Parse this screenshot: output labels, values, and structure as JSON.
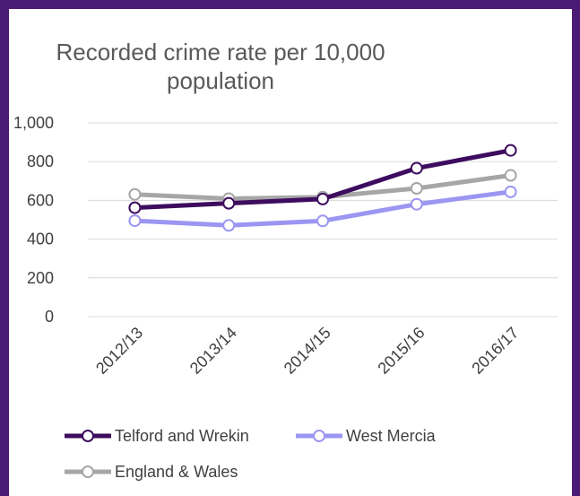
{
  "chart_data": {
    "type": "line",
    "title_lines": [
      "Recorded crime rate per 10,000",
      "population"
    ],
    "categories": [
      "2012/13",
      "2013/14",
      "2014/15",
      "2015/16",
      "2016/17"
    ],
    "ylim": [
      0,
      1000
    ],
    "yticks": [
      0,
      200,
      400,
      600,
      800,
      1000
    ],
    "ytick_labels": [
      "0",
      "200",
      "400",
      "600",
      "800",
      "1,000"
    ],
    "grid": true,
    "legend_position": "bottom",
    "series": [
      {
        "name": "Telford and Wrekin",
        "color": "#3d0c5e",
        "values": [
          562,
          585,
          607,
          766,
          858
        ]
      },
      {
        "name": "West Mercia",
        "color": "#9b96f2",
        "values": [
          495,
          471,
          494,
          580,
          644
        ]
      },
      {
        "name": "England & Wales",
        "color": "#a6a6a6",
        "values": [
          631,
          609,
          617,
          662,
          729
        ]
      }
    ]
  },
  "colors": {
    "border": "#4b1a75",
    "background": "#ffffff",
    "gridline": "#d9d9d9",
    "text": "#404040"
  }
}
